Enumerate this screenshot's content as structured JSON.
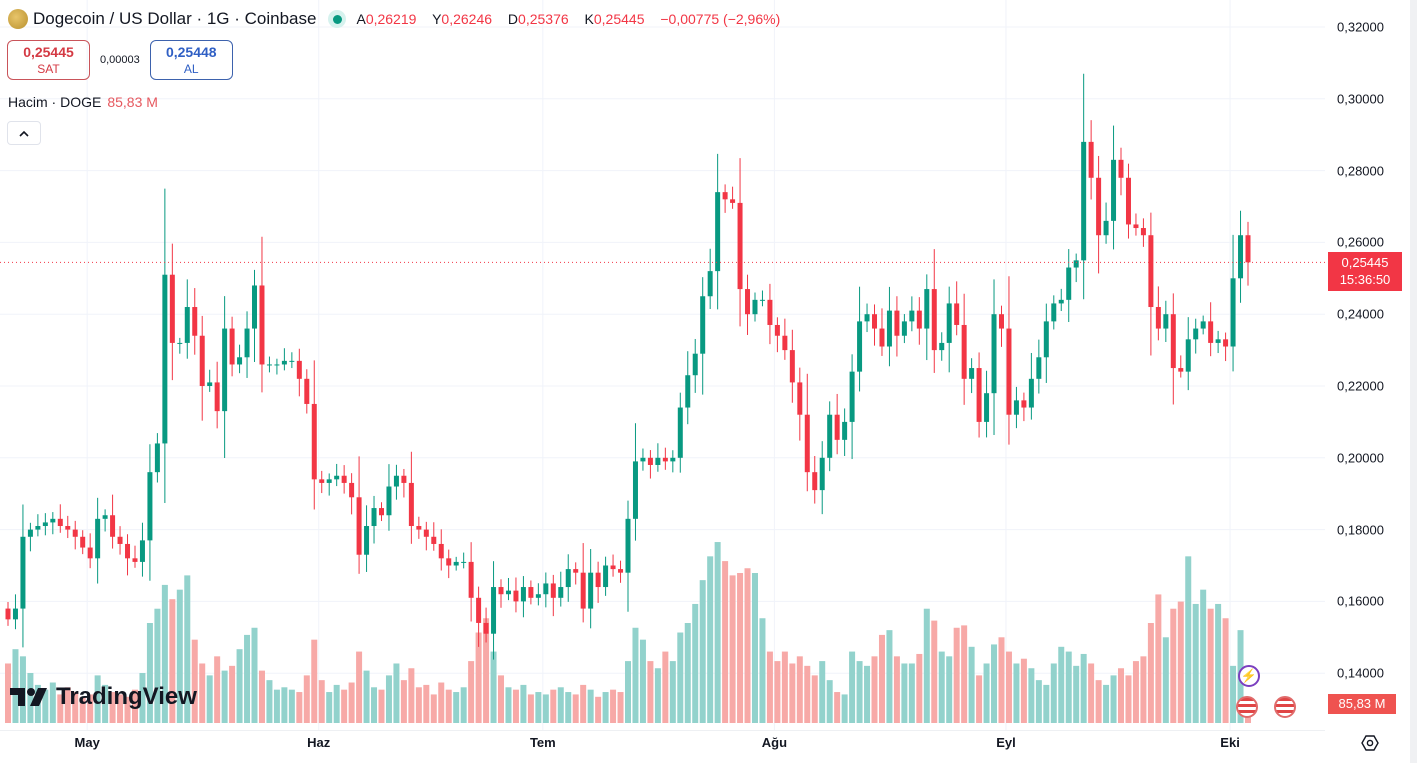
{
  "header": {
    "title": "Dogecoin / US Dollar · 1G · Coinbase",
    "ohlc": {
      "o_label": "A",
      "o": "0,26219",
      "h_label": "Y",
      "h": "0,26246",
      "l_label": "D",
      "l": "0,25376",
      "c_label": "K",
      "c": "0,25445",
      "change": "−0,00775 (−2,96%)"
    }
  },
  "trade": {
    "sell_price": "0,25445",
    "sell_label": "SAT",
    "spread": "0,00003",
    "buy_price": "0,25448",
    "buy_label": "AL"
  },
  "volume_legend": {
    "label": "Hacim · DOGE",
    "value": "85,83 M"
  },
  "collapse_icon": "chevron-up-icon",
  "price_axis": {
    "labels": [
      "0,32000",
      "0,30000",
      "0,28000",
      "0,26000",
      "0,24000",
      "0,22000",
      "0,20000",
      "0,18000",
      "0,16000",
      "0,14000"
    ],
    "current_price": "0,25445",
    "countdown": "15:36:50",
    "volume_value": "85,83 M"
  },
  "time_axis": {
    "labels": [
      "May",
      "Haz",
      "Tem",
      "Ağu",
      "Eyl",
      "Eki"
    ]
  },
  "logo_text": "TradingView",
  "colors": {
    "up": "#089981",
    "down": "#f23645",
    "vol_up": "#92d2cc",
    "vol_down": "#f7a9a7",
    "grid": "#f0f3fa"
  },
  "chart_data": {
    "type": "candlestick",
    "title": "Dogecoin / US Dollar · 1G · Coinbase",
    "ylim": [
      0.13,
      0.32
    ],
    "first_open": 0.158,
    "closes": [
      0.155,
      0.158,
      0.178,
      0.18,
      0.181,
      0.182,
      0.183,
      0.181,
      0.18,
      0.178,
      0.175,
      0.172,
      0.183,
      0.184,
      0.178,
      0.176,
      0.172,
      0.171,
      0.177,
      0.196,
      0.204,
      0.251,
      0.232,
      0.232,
      0.242,
      0.234,
      0.22,
      0.221,
      0.213,
      0.236,
      0.226,
      0.228,
      0.236,
      0.248,
      0.226,
      0.226,
      0.226,
      0.227,
      0.227,
      0.222,
      0.215,
      0.194,
      0.193,
      0.194,
      0.195,
      0.193,
      0.189,
      0.173,
      0.181,
      0.186,
      0.184,
      0.192,
      0.195,
      0.193,
      0.181,
      0.18,
      0.178,
      0.176,
      0.172,
      0.17,
      0.171,
      0.171,
      0.161,
      0.154,
      0.151,
      0.164,
      0.162,
      0.163,
      0.16,
      0.164,
      0.161,
      0.162,
      0.165,
      0.161,
      0.164,
      0.169,
      0.168,
      0.158,
      0.168,
      0.164,
      0.17,
      0.169,
      0.168,
      0.183,
      0.199,
      0.2,
      0.198,
      0.2,
      0.199,
      0.2,
      0.214,
      0.223,
      0.229,
      0.245,
      0.252,
      0.274,
      0.272,
      0.271,
      0.247,
      0.24,
      0.244,
      0.244,
      0.237,
      0.234,
      0.23,
      0.221,
      0.212,
      0.196,
      0.191,
      0.2,
      0.212,
      0.205,
      0.21,
      0.224,
      0.238,
      0.24,
      0.236,
      0.231,
      0.241,
      0.234,
      0.238,
      0.241,
      0.236,
      0.247,
      0.23,
      0.232,
      0.243,
      0.237,
      0.222,
      0.225,
      0.21,
      0.218,
      0.24,
      0.236,
      0.212,
      0.216,
      0.214,
      0.222,
      0.228,
      0.238,
      0.243,
      0.244,
      0.253,
      0.255,
      0.288,
      0.278,
      0.262,
      0.266,
      0.283,
      0.278,
      0.265,
      0.264,
      0.262,
      0.242,
      0.236,
      0.24,
      0.225,
      0.224,
      0.233,
      0.236,
      0.238,
      0.232,
      0.233,
      0.231,
      0.25,
      0.262,
      0.25445
    ],
    "volumes_m": [
      250,
      310,
      280,
      210,
      160,
      140,
      170,
      120,
      150,
      130,
      110,
      120,
      200,
      160,
      130,
      120,
      110,
      140,
      210,
      420,
      480,
      580,
      520,
      560,
      620,
      350,
      250,
      200,
      280,
      220,
      240,
      310,
      370,
      400,
      220,
      180,
      140,
      150,
      140,
      130,
      200,
      350,
      180,
      130,
      160,
      140,
      170,
      300,
      220,
      150,
      140,
      200,
      250,
      180,
      230,
      150,
      160,
      120,
      170,
      140,
      130,
      150,
      260,
      380,
      440,
      300,
      200,
      150,
      140,
      160,
      120,
      130,
      120,
      140,
      150,
      130,
      120,
      160,
      140,
      110,
      130,
      140,
      130,
      260,
      400,
      350,
      260,
      230,
      300,
      260,
      380,
      420,
      500,
      600,
      700,
      760,
      680,
      620,
      630,
      650,
      630,
      440,
      300,
      260,
      300,
      250,
      280,
      240,
      200,
      260,
      180,
      130,
      120,
      300,
      260,
      240,
      280,
      370,
      390,
      280,
      250,
      250,
      290,
      480,
      430,
      300,
      280,
      400,
      410,
      320,
      200,
      250,
      330,
      360,
      300,
      250,
      270,
      230,
      180,
      160,
      250,
      320,
      300,
      240,
      290,
      250,
      180,
      160,
      200,
      230,
      200,
      260,
      280,
      420,
      540,
      360,
      480,
      510,
      700,
      500,
      560,
      480,
      500,
      440,
      240,
      390,
      86
    ],
    "month_start_index": {
      "May": 11,
      "Haz": 42,
      "Tem": 72,
      "Ağu": 103,
      "Eyl": 134,
      "Eki": 164
    },
    "current_price": 0.25445
  }
}
